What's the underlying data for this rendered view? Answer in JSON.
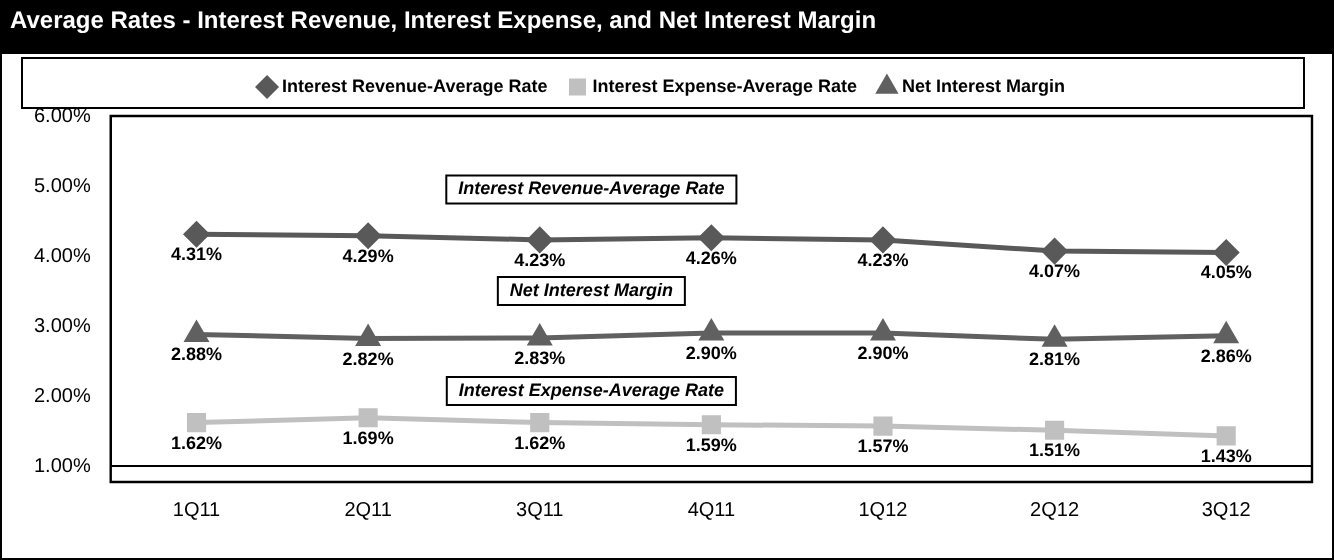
{
  "chart_data": {
    "type": "line",
    "title": "Average Rates - Interest Revenue, Interest Expense, and Net Interest Margin",
    "categories": [
      "1Q11",
      "2Q11",
      "3Q11",
      "4Q11",
      "1Q12",
      "2Q12",
      "3Q12"
    ],
    "series": [
      {
        "name": "Interest Revenue-Average Rate",
        "color": "#595959",
        "marker": "diamond",
        "values": [
          4.31,
          4.29,
          4.23,
          4.26,
          4.23,
          4.07,
          4.05
        ],
        "value_labels": [
          "4.31%",
          "4.29%",
          "4.23%",
          "4.26%",
          "4.23%",
          "4.07%",
          "4.05%"
        ]
      },
      {
        "name": "Interest Expense-Average Rate",
        "color": "#c0c0c0",
        "marker": "square",
        "values": [
          1.62,
          1.69,
          1.62,
          1.59,
          1.57,
          1.51,
          1.43
        ],
        "value_labels": [
          "1.62%",
          "1.69%",
          "1.62%",
          "1.59%",
          "1.57%",
          "1.51%",
          "1.43%"
        ]
      },
      {
        "name": "Net Interest Margin",
        "color": "#606060",
        "marker": "triangle",
        "values": [
          2.88,
          2.82,
          2.83,
          2.9,
          2.9,
          2.81,
          2.86
        ],
        "value_labels": [
          "2.88%",
          "2.82%",
          "2.83%",
          "2.90%",
          "2.90%",
          "2.81%",
          "2.86%"
        ]
      }
    ],
    "ylim": [
      1,
      6
    ],
    "yticks": [
      {
        "value": 1,
        "label": "1.00%"
      },
      {
        "value": 2,
        "label": "2.00%"
      },
      {
        "value": 3,
        "label": "3.00%"
      },
      {
        "value": 4,
        "label": "4.00%"
      },
      {
        "value": 5,
        "label": "5.00%"
      },
      {
        "value": 6,
        "label": "6.00%"
      }
    ],
    "annotations": [
      "Interest Revenue-Average Rate",
      "Net Interest Margin",
      "Interest Expense-Average Rate"
    ],
    "grid": false,
    "legend": "top",
    "line_style": "solid"
  }
}
